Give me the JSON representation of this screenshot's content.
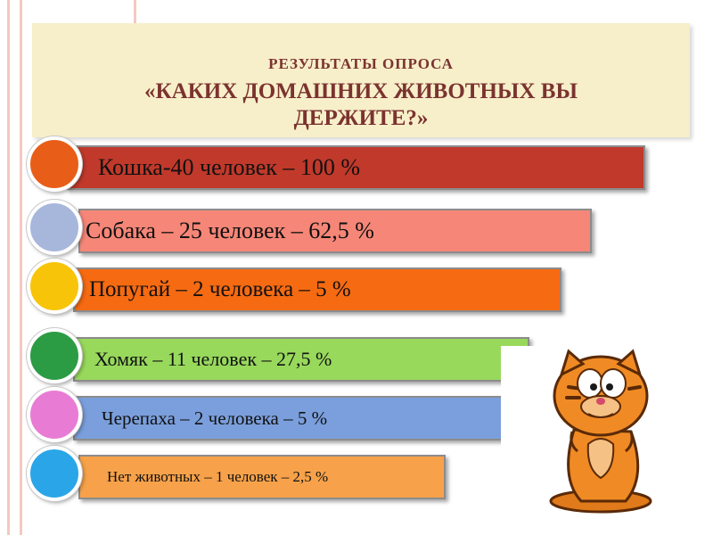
{
  "title": {
    "line1": "РЕЗУЛЬТАТЫ  ОПРОСА",
    "line2": "«КАКИХ ДОМАШНИХ ЖИВОТНЫХ ВЫ ДЕРЖИТЕ?»"
  },
  "chart_data": {
    "type": "bar",
    "title": "РЕЗУЛЬТАТЫ  ОПРОСА «КАКИХ ДОМАШНИХ ЖИВОТНЫХ ВЫ ДЕРЖИТЕ?»",
    "categories": [
      "Кошка",
      "Собака",
      "Попугай",
      "Хомяк",
      "Черепаха",
      "Нет животных"
    ],
    "counts": [
      40,
      25,
      2,
      11,
      2,
      1
    ],
    "percents": [
      100,
      62.5,
      5,
      27.5,
      5,
      2.5
    ],
    "labels": [
      "Кошка-40 человек – 100 %",
      "Собака – 25 человек – 62,5 %",
      "Попугай – 2 человека – 5 %",
      "Хомяк – 11 человек – 27,5 %",
      "Черепаха – 2 человека – 5 %",
      "Нет животных – 1 человек – 2,5 %"
    ],
    "colors": {
      "bars": [
        "#c1392b",
        "#f68677",
        "#f66a12",
        "#98d95c",
        "#7b9fdc",
        "#f7a24a"
      ],
      "circles": [
        "#e85e18",
        "#a7b7dc",
        "#f7c40a",
        "#2b9c44",
        "#e87cd4",
        "#2aa6e8"
      ]
    }
  },
  "decoration": {
    "illustration": "cartoon-cat-icon"
  }
}
